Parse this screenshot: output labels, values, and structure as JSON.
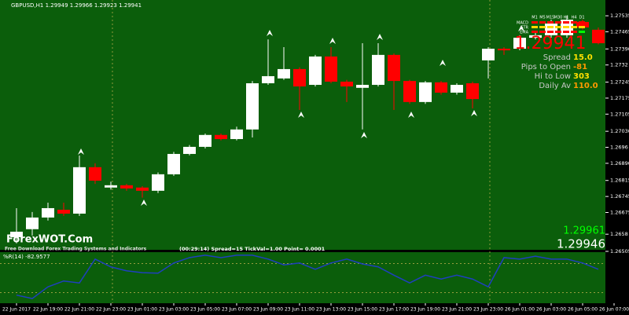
{
  "chart_data": [
    {
      "type": "candlestick",
      "title": "GBPUSD,H1  1.29949 1.29966 1.29923 1.29941",
      "up_color": "#ffffff",
      "down_color": "#ff0000",
      "background": "#0b5e0b",
      "open": [
        1.26567,
        1.26602,
        1.26653,
        1.26687,
        1.2667,
        1.26873,
        1.26784,
        1.26794,
        1.26784,
        1.2677,
        1.26842,
        1.26931,
        1.26962,
        1.27014,
        1.26996,
        1.27038,
        1.2724,
        1.27261,
        1.27302,
        1.27233,
        1.27357,
        1.27247,
        1.2722,
        1.27233,
        1.27364,
        1.2725,
        1.27158,
        1.27244,
        1.27199,
        1.2724,
        1.2734,
        1.27391,
        1.27391,
        1.27439,
        1.2745,
        1.2745,
        1.27508,
        1.27474
      ],
      "high": [
        1.26694,
        1.26677,
        1.26718,
        1.26718,
        1.26924,
        1.2689,
        1.2681,
        1.268,
        1.2679,
        1.2685,
        1.2694,
        1.2697,
        1.2702,
        1.2702,
        1.2705,
        1.2725,
        1.27432,
        1.27398,
        1.2731,
        1.27364,
        1.27398,
        1.27255,
        1.27415,
        1.27415,
        1.2737,
        1.27255,
        1.2725,
        1.2725,
        1.2724,
        1.27247,
        1.27398,
        1.27398,
        1.2745,
        1.2747,
        1.27518,
        1.27535,
        1.27518,
        1.27484
      ],
      "low": [
        1.2654,
        1.26574,
        1.2664,
        1.2666,
        1.2666,
        1.268,
        1.26775,
        1.2677,
        1.2674,
        1.2676,
        1.26835,
        1.26925,
        1.26955,
        1.2699,
        1.2699,
        1.27003,
        1.27233,
        1.27255,
        1.27123,
        1.27226,
        1.2724,
        1.27158,
        1.27038,
        1.27226,
        1.27123,
        1.2715,
        1.2715,
        1.2719,
        1.2719,
        1.2713,
        1.27261,
        1.27364,
        1.27384,
        1.27432,
        1.27439,
        1.27439,
        1.27474,
        1.2741
      ],
      "close": [
        1.26591,
        1.26653,
        1.26694,
        1.2667,
        1.26873,
        1.26814,
        1.26794,
        1.2678,
        1.2677,
        1.26842,
        1.26931,
        1.26962,
        1.27014,
        1.26996,
        1.27038,
        1.2724,
        1.27271,
        1.27302,
        1.27226,
        1.27357,
        1.27247,
        1.27226,
        1.27233,
        1.27364,
        1.2725,
        1.27158,
        1.27244,
        1.27199,
        1.27233,
        1.27171,
        1.27391,
        1.27384,
        1.27439,
        1.2745,
        1.27501,
        1.27518,
        1.27484,
        1.27415
      ],
      "ylim": [
        1.26505,
        1.27604
      ],
      "yticks": [
        1.27535,
        1.27465,
        {
          "value": 1.2739,
          "label": "1.27390"
        },
        1.2732,
        1.27245,
        1.27175,
        1.27105,
        {
          "value": 1.2703,
          "label": "1.27030"
        },
        1.2696,
        {
          "value": 1.2689,
          "label": "1.26890"
        },
        1.26815,
        1.26745,
        1.26675,
        1.2658,
        1.26505
      ],
      "xticks": [
        {
          "value": 0,
          "label": "22 Jun 2017"
        },
        {
          "value": 2,
          "label": "22 Jun 19:00"
        },
        {
          "value": 4,
          "label": "22 Jun 21:00"
        },
        {
          "value": 6,
          "label": "22 Jun 23:00"
        },
        {
          "value": 8,
          "label": "23 Jun 01:00"
        },
        {
          "value": 10,
          "label": "23 Jun 03:00"
        },
        {
          "value": 12,
          "label": "23 Jun 05:00"
        },
        {
          "value": 14,
          "label": "23 Jun 07:00"
        },
        {
          "value": 16,
          "label": "23 Jun 09:00"
        },
        {
          "value": 18,
          "label": "23 Jun 11:00"
        },
        {
          "value": 20,
          "label": "23 Jun 13:00"
        },
        {
          "value": 22,
          "label": "23 Jun 15:00"
        },
        {
          "value": 24,
          "label": "23 Jun 17:00"
        },
        {
          "value": 26,
          "label": "23 Jun 19:00"
        },
        {
          "value": 28,
          "label": "23 Jun 21:00"
        },
        {
          "value": 30,
          "label": "23 Jun 23:00"
        },
        {
          "value": 32,
          "label": "26 Jun 01:00"
        },
        {
          "value": 34,
          "label": "26 Jun 03:00"
        },
        {
          "value": 36,
          "label": "26 Jun 05:00"
        },
        {
          "value": 38,
          "label": "26 Jun 07:00"
        }
      ],
      "day_separators": [
        6,
        30
      ]
    },
    {
      "type": "line",
      "title": "%R(14) -82.9577",
      "color": "#1f3fbf",
      "values": [
        -85,
        -92,
        -68,
        -56,
        -60,
        -11,
        -27,
        -35,
        -39,
        -40,
        -19,
        -8,
        -3,
        -8,
        -3,
        -3,
        -11,
        -23,
        -19,
        -32,
        -19,
        -11,
        -21,
        -27,
        -44,
        -60,
        -44,
        -52,
        -44,
        -52,
        -68,
        -8,
        -11,
        -5,
        -11,
        -11,
        -19,
        -32
      ],
      "ylim": [
        -100,
        0
      ],
      "levels": [
        -20,
        -80
      ]
    }
  ],
  "panel": {
    "timeframes": [
      "M1",
      "M5",
      "M15",
      "M30",
      "H1",
      "H4",
      "D1"
    ],
    "rows": [
      "MACD",
      "STR",
      "EMA"
    ],
    "price": "1.29941",
    "stats": [
      [
        "Spread",
        "15.0"
      ],
      [
        "Pips to Open",
        "-81"
      ],
      [
        "Hi to Low",
        "303"
      ],
      [
        "Daily Av",
        "110.0"
      ]
    ],
    "brand": "ForexWOT.Com",
    "tagline": "Free Download Forex Trading Systems and Indicators",
    "status": "(00:29:14)  Spread=15  TickVal=1.00  Point= 0.0001",
    "ask": "1.29961",
    "bid": "1.29946"
  }
}
